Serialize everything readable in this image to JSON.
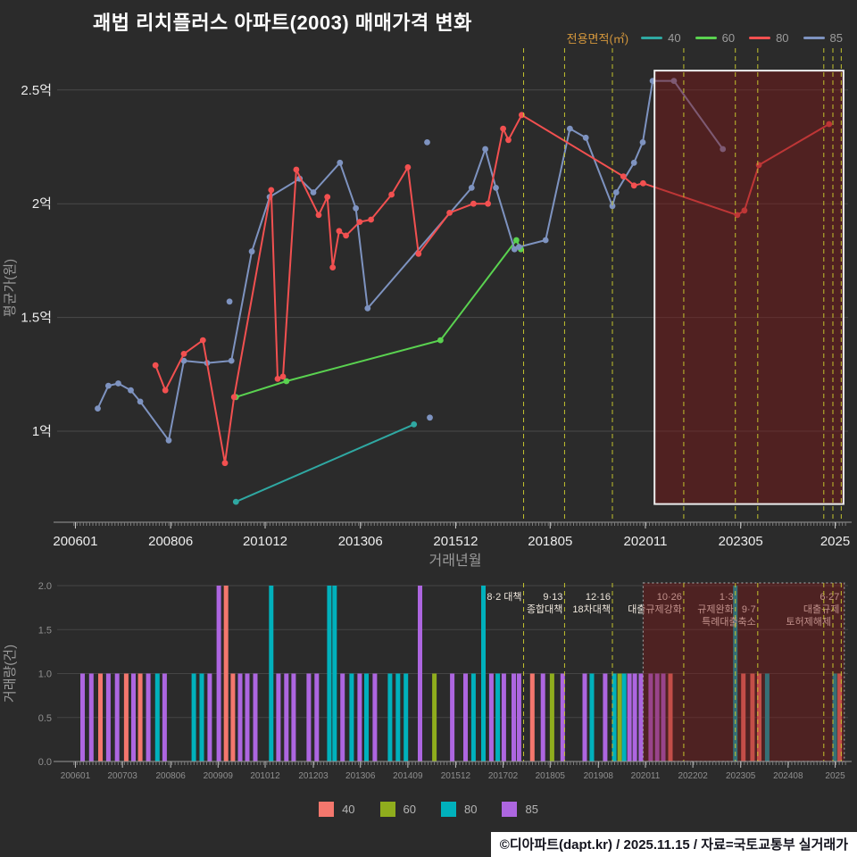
{
  "title": "괘법 리치플러스 아파트(2003) 매매가격 변화",
  "legend": {
    "label": "전용면적(㎡)",
    "items": [
      {
        "name": "40",
        "color": "#2fa8a2"
      },
      {
        "name": "60",
        "color": "#5ad250"
      },
      {
        "name": "80",
        "color": "#f25050"
      },
      {
        "name": "85",
        "color": "#7e93c0"
      }
    ]
  },
  "legend_bottom": {
    "items": [
      {
        "name": "40",
        "color": "#f4776d"
      },
      {
        "name": "60",
        "color": "#8fad1d"
      },
      {
        "name": "80",
        "color": "#00b1bc"
      },
      {
        "name": "85",
        "color": "#ad66e0"
      }
    ]
  },
  "footer": "©디아파트(dapt.kr) / 2025.11.15 / 자료=국토교통부 실거래가",
  "chart_data": [
    {
      "type": "line",
      "title": "매매가격 변화",
      "xlabel": "거래년월",
      "ylabel": "평균가(원)",
      "xlim": [
        2005.7,
        2026.4
      ],
      "ylim": [
        0.6,
        2.66
      ],
      "grid": true,
      "yticks": [
        {
          "v": 1.0,
          "label": "1억"
        },
        {
          "v": 1.5,
          "label": "1.5억"
        },
        {
          "v": 2.0,
          "label": "2억"
        },
        {
          "v": 2.5,
          "label": "2.5억"
        }
      ],
      "xticks": [
        {
          "v": 2006.04,
          "label": "200601"
        },
        {
          "v": 2008.55,
          "label": "200806"
        },
        {
          "v": 2011.04,
          "label": "201012"
        },
        {
          "v": 2013.55,
          "label": "201306"
        },
        {
          "v": 2016.06,
          "label": "201512"
        },
        {
          "v": 2018.55,
          "label": "201805"
        },
        {
          "v": 2021.06,
          "label": "202011"
        },
        {
          "v": 2023.57,
          "label": "202305"
        },
        {
          "v": 2026.06,
          "label": "2025"
        }
      ],
      "event_lines": [
        2017.85,
        2018.93,
        2020.19,
        2022.07,
        2023.43,
        2024.02,
        2025.76,
        2026.0,
        2026.22
      ],
      "highlight": {
        "x0": 2021.3,
        "x1": 2026.28,
        "y0": 0.68,
        "y1": 2.585
      },
      "series": [
        {
          "name": "40",
          "color": "#2fa8a2",
          "points": [
            [
              2010.27,
              0.69
            ],
            [
              2014.96,
              1.03
            ]
          ]
        },
        {
          "name": "60",
          "color": "#5ad250",
          "points": [
            [
              2010.27,
              1.15
            ],
            [
              2011.6,
              1.22
            ],
            [
              2015.66,
              1.4
            ],
            [
              2017.66,
              1.84
            ],
            [
              2017.78,
              1.8
            ]
          ]
        },
        {
          "name": "85",
          "color": "#7e93c0",
          "points": [
            [
              2006.63,
              1.1
            ],
            [
              2006.91,
              1.2
            ],
            [
              2007.17,
              1.21
            ],
            [
              2007.5,
              1.18
            ],
            [
              2007.75,
              1.13
            ],
            [
              2008.5,
              0.96
            ],
            [
              2008.9,
              1.31
            ],
            [
              2009.51,
              1.3
            ],
            [
              2010.15,
              1.31
            ],
            [
              2010.69,
              1.79
            ],
            [
              2011.16,
              2.03
            ],
            [
              2011.95,
              2.11
            ],
            [
              2012.31,
              2.05
            ],
            [
              2013.01,
              2.18
            ],
            [
              2013.43,
              1.98
            ],
            [
              2013.74,
              1.54
            ],
            [
              2016.48,
              2.07
            ],
            [
              2016.84,
              2.24
            ],
            [
              2017.12,
              2.07
            ],
            [
              2017.61,
              1.8
            ],
            [
              2017.73,
              1.81
            ],
            [
              2018.43,
              1.84
            ],
            [
              2019.07,
              2.33
            ],
            [
              2019.49,
              2.29
            ],
            [
              2020.19,
              1.99
            ],
            [
              2020.29,
              2.05
            ],
            [
              2020.76,
              2.18
            ],
            [
              2020.99,
              2.27
            ],
            [
              2021.25,
              2.54
            ],
            [
              2021.81,
              2.54
            ],
            [
              2023.1,
              2.24
            ]
          ],
          "isolated": [
            [
              2010.1,
              1.57
            ],
            [
              2015.31,
              2.27
            ],
            [
              2015.38,
              1.06
            ]
          ]
        },
        {
          "name": "80",
          "color": "#f25050",
          "points": [
            [
              2008.15,
              1.29
            ],
            [
              2008.41,
              1.18
            ],
            [
              2008.9,
              1.34
            ],
            [
              2009.4,
              1.4
            ],
            [
              2009.98,
              0.86
            ],
            [
              2010.22,
              1.15
            ],
            [
              2011.2,
              2.06
            ],
            [
              2011.37,
              1.23
            ],
            [
              2011.51,
              1.24
            ],
            [
              2011.86,
              2.15
            ],
            [
              2012.45,
              1.95
            ],
            [
              2012.68,
              2.03
            ],
            [
              2012.82,
              1.72
            ],
            [
              2012.99,
              1.88
            ],
            [
              2013.17,
              1.86
            ],
            [
              2013.53,
              1.92
            ],
            [
              2013.83,
              1.93
            ],
            [
              2014.37,
              2.04
            ],
            [
              2014.8,
              2.16
            ],
            [
              2015.08,
              1.78
            ],
            [
              2015.9,
              1.96
            ],
            [
              2016.53,
              2.0
            ],
            [
              2016.91,
              2.0
            ],
            [
              2017.31,
              2.33
            ],
            [
              2017.45,
              2.28
            ],
            [
              2017.8,
              2.39
            ],
            [
              2020.48,
              2.12
            ],
            [
              2020.76,
              2.08
            ],
            [
              2021.0,
              2.09
            ],
            [
              2023.48,
              1.95
            ],
            [
              2023.67,
              1.97
            ],
            [
              2024.05,
              2.17
            ],
            [
              2025.9,
              2.35
            ]
          ]
        }
      ]
    },
    {
      "type": "bar",
      "ylabel": "거래량(건)",
      "ylim": [
        0,
        2
      ],
      "yticks": [
        {
          "v": 0.0,
          "label": "0.0"
        },
        {
          "v": 0.5,
          "label": "0.5"
        },
        {
          "v": 1.0,
          "label": "1.0"
        },
        {
          "v": 1.5,
          "label": "1.5"
        },
        {
          "v": 2.0,
          "label": "2.0"
        }
      ],
      "xticks": [
        {
          "v": 2006.04,
          "label": "200601"
        },
        {
          "v": 2007.28,
          "label": "200703"
        },
        {
          "v": 2008.55,
          "label": "200806"
        },
        {
          "v": 2009.8,
          "label": "200909"
        },
        {
          "v": 2011.04,
          "label": "201012"
        },
        {
          "v": 2012.31,
          "label": "201203"
        },
        {
          "v": 2013.55,
          "label": "201306"
        },
        {
          "v": 2014.8,
          "label": "201409"
        },
        {
          "v": 2016.06,
          "label": "201512"
        },
        {
          "v": 2017.31,
          "label": "201702"
        },
        {
          "v": 2018.55,
          "label": "201805"
        },
        {
          "v": 2019.82,
          "label": "201908"
        },
        {
          "v": 2021.06,
          "label": "202011"
        },
        {
          "v": 2022.31,
          "label": "202202"
        },
        {
          "v": 2023.57,
          "label": "202305"
        },
        {
          "v": 2024.82,
          "label": "202408"
        },
        {
          "v": 2026.06,
          "label": "2025"
        }
      ],
      "colors": {
        "40": "#f4776d",
        "60": "#8fad1d",
        "80": "#00b1bc",
        "85": "#ad66e0"
      },
      "event_lines": [
        2017.85,
        2018.93,
        2020.19,
        2022.07,
        2023.43,
        2024.02,
        2025.76,
        2026.0,
        2026.22
      ],
      "highlight": {
        "x0": 2021.0,
        "x1": 2026.3
      },
      "annotations": [
        {
          "x": 2017.85,
          "lines": [
            "8·2 대책"
          ],
          "row": 0
        },
        {
          "x": 2018.93,
          "lines": [
            "9·13",
            "종합대책"
          ],
          "row": 0
        },
        {
          "x": 2020.19,
          "lines": [
            "12·16",
            "18차대책"
          ],
          "row": 0
        },
        {
          "x": 2022.07,
          "lines": [
            "10·26",
            "대출규제강화"
          ],
          "row": 0
        },
        {
          "x": 2023.43,
          "lines": [
            "1·3",
            "규제완화"
          ],
          "row": 0
        },
        {
          "x": 2024.02,
          "lines": [
            "9·7",
            "특례대출축소"
          ],
          "row": 1
        },
        {
          "x": 2026.0,
          "lines": [
            "토허제해제"
          ],
          "row": 2
        },
        {
          "x": 2026.22,
          "lines": [
            "6·27",
            "대출규제"
          ],
          "row": 0
        }
      ],
      "bars": [
        [
          2006.23,
          "85",
          1
        ],
        [
          2006.46,
          "85",
          1
        ],
        [
          2006.7,
          "40",
          1
        ],
        [
          2006.91,
          "85",
          1
        ],
        [
          2007.14,
          "85",
          1
        ],
        [
          2007.38,
          "40",
          1
        ],
        [
          2007.57,
          "85",
          1
        ],
        [
          2007.75,
          "40",
          1
        ],
        [
          2007.96,
          "85",
          1
        ],
        [
          2008.2,
          "80",
          1
        ],
        [
          2008.39,
          "85",
          1
        ],
        [
          2009.16,
          "80",
          1
        ],
        [
          2009.37,
          "80",
          1
        ],
        [
          2009.58,
          "85",
          1
        ],
        [
          2009.82,
          "85",
          2
        ],
        [
          2010.01,
          "40",
          2
        ],
        [
          2010.19,
          "40",
          1
        ],
        [
          2010.38,
          "85",
          1
        ],
        [
          2010.57,
          "85",
          1
        ],
        [
          2010.78,
          "85",
          1
        ],
        [
          2011.2,
          "80",
          2
        ],
        [
          2011.39,
          "85",
          1
        ],
        [
          2011.6,
          "85",
          1
        ],
        [
          2011.79,
          "85",
          1
        ],
        [
          2012.19,
          "85",
          1
        ],
        [
          2012.4,
          "85",
          1
        ],
        [
          2012.73,
          "80",
          2
        ],
        [
          2012.87,
          "80",
          2
        ],
        [
          2013.08,
          "85",
          1
        ],
        [
          2013.32,
          "80",
          1
        ],
        [
          2013.53,
          "85",
          1
        ],
        [
          2013.71,
          "80",
          1
        ],
        [
          2013.93,
          "85",
          1
        ],
        [
          2014.33,
          "80",
          1
        ],
        [
          2014.54,
          "80",
          1
        ],
        [
          2014.75,
          "80",
          1
        ],
        [
          2015.12,
          "85",
          2
        ],
        [
          2015.5,
          "60",
          1
        ],
        [
          2015.97,
          "85",
          1
        ],
        [
          2016.32,
          "85",
          1
        ],
        [
          2016.53,
          "80",
          1
        ],
        [
          2016.79,
          "80",
          2
        ],
        [
          2017.0,
          "85",
          1
        ],
        [
          2017.17,
          "80",
          1
        ],
        [
          2017.33,
          "85",
          1
        ],
        [
          2017.59,
          "85",
          1
        ],
        [
          2017.73,
          "85",
          1
        ],
        [
          2018.08,
          "40",
          1
        ],
        [
          2018.36,
          "85",
          1
        ],
        [
          2018.6,
          "60",
          1
        ],
        [
          2018.88,
          "85",
          1
        ],
        [
          2019.46,
          "85",
          1
        ],
        [
          2019.65,
          "80",
          1
        ],
        [
          2020.0,
          "85",
          1
        ],
        [
          2020.24,
          "80",
          1
        ],
        [
          2020.38,
          "60",
          1
        ],
        [
          2020.5,
          "80",
          1
        ],
        [
          2020.64,
          "85",
          1
        ],
        [
          2020.78,
          "85",
          1
        ],
        [
          2020.94,
          "85",
          1
        ],
        [
          2021.2,
          "85",
          1
        ],
        [
          2021.37,
          "85",
          1
        ],
        [
          2021.53,
          "85",
          1
        ],
        [
          2021.72,
          "40",
          1
        ],
        [
          2023.43,
          "80",
          2
        ],
        [
          2023.64,
          "40",
          1
        ],
        [
          2023.88,
          "40",
          1
        ],
        [
          2024.06,
          "40",
          1
        ],
        [
          2024.27,
          "80",
          1
        ],
        [
          2026.05,
          "80",
          1
        ],
        [
          2026.18,
          "40",
          1
        ]
      ]
    }
  ]
}
